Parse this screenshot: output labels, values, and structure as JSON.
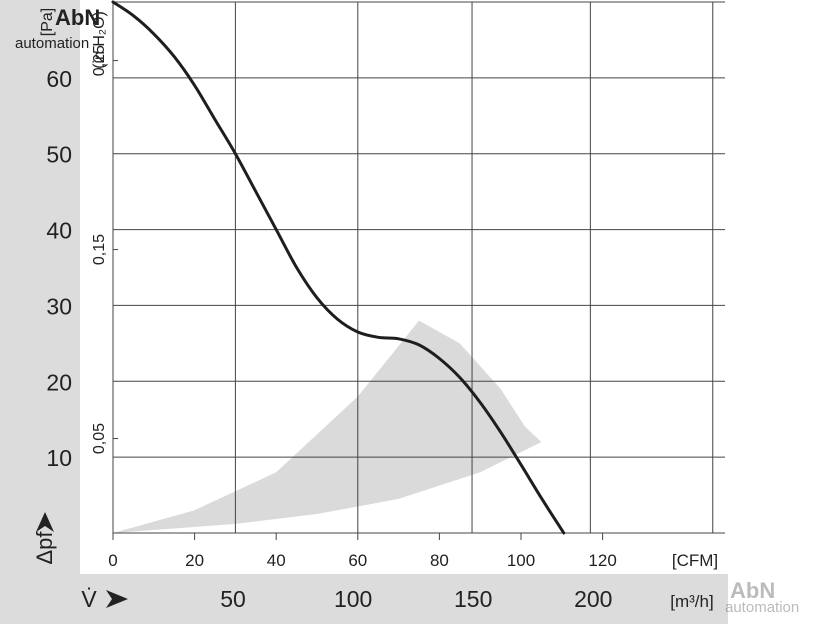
{
  "chart_data": {
    "type": "line",
    "title": "",
    "y_pa": {
      "label": "[Pa]",
      "ticks": [
        10,
        20,
        30,
        40,
        50,
        60
      ],
      "range": [
        0,
        70
      ]
    },
    "y_inh2o": {
      "label": "(in H₂O)",
      "ticks": [
        {
          "value": 0.05,
          "label": "0,05"
        },
        {
          "value": 0.15,
          "label": "0,15"
        },
        {
          "value": 0.25,
          "label": "0,25"
        }
      ]
    },
    "x_cfm": {
      "label": "[CFM]",
      "ticks": [
        0,
        20,
        40,
        60,
        80,
        100,
        120
      ],
      "grid": [
        0,
        30,
        60,
        88,
        117,
        147
      ],
      "range": [
        0,
        150
      ]
    },
    "x_m3h": {
      "label": "[m³/h]",
      "ticks": [
        50,
        100,
        150,
        200
      ]
    },
    "ylabel": "Δpf",
    "xlabel": "V̇",
    "series": [
      {
        "unit_x": "CFM",
        "unit_y": "Pa",
        "x": [
          0,
          5,
          10,
          15,
          20,
          25,
          30,
          35,
          40,
          45,
          50,
          55,
          60,
          65,
          70,
          75,
          80,
          85,
          90,
          95,
          100,
          105,
          110.5
        ],
        "y": [
          70,
          68.2,
          65.8,
          62.8,
          59,
          54.5,
          50,
          45,
          40,
          35,
          31,
          28.2,
          26.5,
          25.8,
          25.6,
          24.8,
          23,
          20.5,
          17.2,
          13.3,
          9,
          4.6,
          0
        ]
      }
    ],
    "operating_range": {
      "upper_x": [
        0,
        20,
        40,
        60,
        75
      ],
      "upper_y": [
        0,
        3,
        8,
        18,
        28
      ],
      "outer_x": [
        75,
        85,
        95,
        101,
        105
      ],
      "outer_y": [
        28,
        25,
        19,
        14,
        12
      ],
      "lower_x": [
        105,
        90,
        70,
        50,
        30,
        10,
        0
      ],
      "lower_y": [
        12,
        8,
        4.5,
        2.5,
        1.2,
        0.4,
        0
      ]
    },
    "grid": true,
    "legend": "none"
  },
  "watermark": {
    "top_left": "AbN automation",
    "bottom_right": "AbN automation"
  }
}
